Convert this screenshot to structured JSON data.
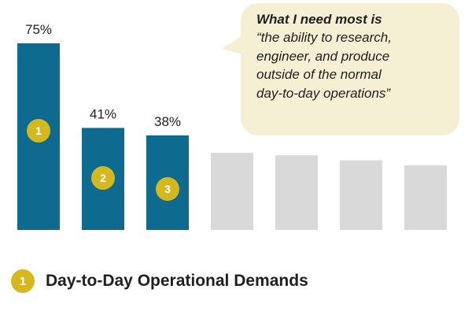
{
  "chart_data": {
    "type": "bar",
    "values": [
      75,
      41,
      38,
      31,
      30,
      28,
      26
    ],
    "value_labels": [
      "75%",
      "41%",
      "38%",
      "",
      "",
      "",
      ""
    ],
    "highlighted_count": 3,
    "rank_badges": [
      "1",
      "2",
      "3"
    ],
    "colors": {
      "highlight": "#0e6b8f",
      "other": "#d9d9d9",
      "badge": "#d4b81f"
    },
    "grid": false
  },
  "callout": {
    "heading": "What I need most is",
    "quote_lines": [
      "“the ability to research,",
      "engineer, and produce",
      "outside of the normal",
      "day-to-day operations”"
    ]
  },
  "legend": {
    "badge": "1",
    "label": "Day-to-Day Operational Demands"
  }
}
